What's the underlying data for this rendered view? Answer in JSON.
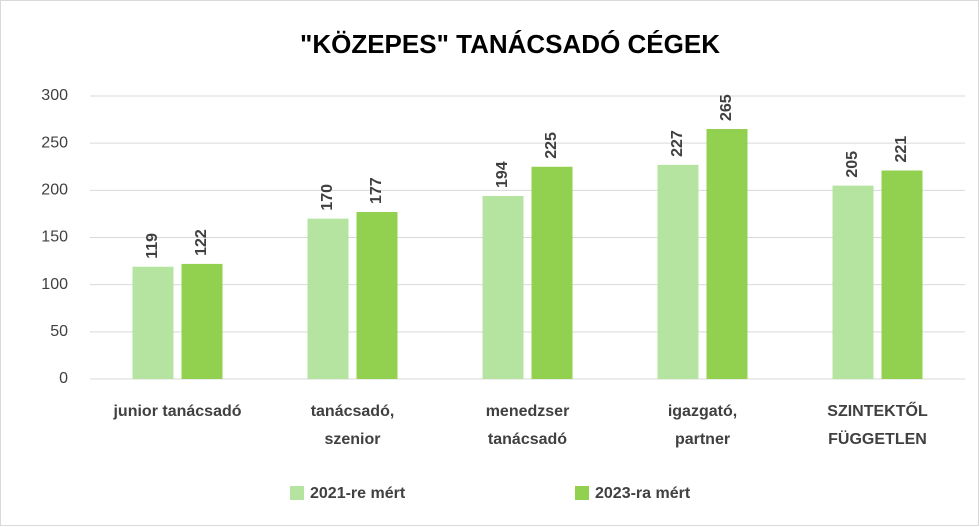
{
  "chart_data": {
    "type": "bar",
    "title": "\"KÖZEPES\" TANÁCSADÓ CÉGEK",
    "categories": [
      "junior tanácsadó",
      "tanácsadó, szenior",
      "menedzser tanácsadó",
      "igazgató, partner",
      "SZINTEKTŐL FÜGGETLEN"
    ],
    "series": [
      {
        "name": "2021-re mért",
        "color": "#b4e4a0",
        "values": [
          119,
          170,
          194,
          227,
          205
        ]
      },
      {
        "name": "2023-ra mért",
        "color": "#92d050",
        "values": [
          122,
          177,
          225,
          265,
          221
        ]
      }
    ],
    "ylim": [
      0,
      300
    ],
    "yticks": [
      0,
      50,
      100,
      150,
      200,
      250,
      300
    ],
    "grid": true,
    "legend": "bottom"
  }
}
